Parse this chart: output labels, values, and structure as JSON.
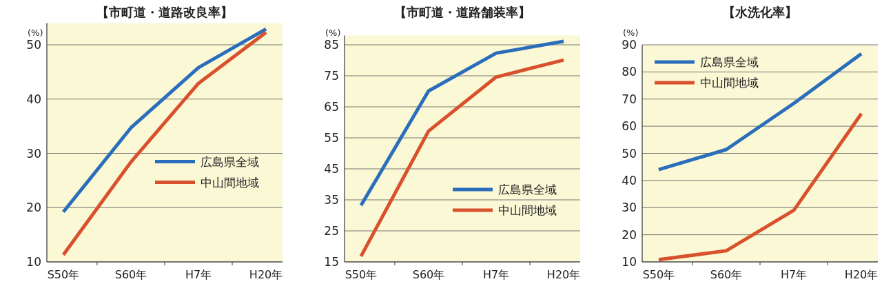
{
  "chart_data": [
    {
      "type": "line",
      "title": "【市町道・道路改良率】",
      "ylabel": "(%)",
      "categories": [
        "S50年",
        "S60年",
        "H7年",
        "H20年"
      ],
      "ylim": [
        10,
        54
      ],
      "yticks": [
        10,
        20,
        30,
        40,
        50
      ],
      "grid": "y",
      "legend": "right",
      "series": [
        {
          "name": "広島県全域",
          "color": "#2a6ebb",
          "values": [
            19.2,
            34.7,
            45.8,
            52.9
          ]
        },
        {
          "name": "中山間地域",
          "color": "#d9512c",
          "values": [
            11.3,
            28.4,
            42.9,
            52.3
          ]
        }
      ]
    },
    {
      "type": "line",
      "title": "【市町道・道路舗装率】",
      "ylabel": "(%)",
      "categories": [
        "S50年",
        "S60年",
        "H7年",
        "H20年"
      ],
      "ylim": [
        15,
        88
      ],
      "yticks": [
        15,
        25,
        35,
        45,
        55,
        65,
        75,
        85
      ],
      "grid": "y",
      "legend": "bottom right",
      "series": [
        {
          "name": "広島県全域",
          "color": "#2a6ebb",
          "values": [
            33.2,
            70.1,
            82.3,
            86.1
          ]
        },
        {
          "name": "中山間地域",
          "color": "#d9512c",
          "values": [
            16.8,
            57.2,
            74.6,
            80.1
          ]
        }
      ]
    },
    {
      "type": "line",
      "title": "【水洗化率】",
      "ylabel": "(%)",
      "categories": [
        "S50年",
        "S60年",
        "H7年",
        "H20年"
      ],
      "ylim": [
        10,
        90
      ],
      "yticks": [
        10,
        20,
        30,
        40,
        50,
        60,
        70,
        80,
        90
      ],
      "grid": "y",
      "legend": "top left",
      "series": [
        {
          "name": "広島県全域",
          "color": "#2a6ebb",
          "values": [
            44,
            51.4,
            68.4,
            86.7
          ]
        },
        {
          "name": "中山間地域",
          "color": "#d9512c",
          "values": [
            10.8,
            14.1,
            29.0,
            64.6
          ]
        }
      ]
    }
  ]
}
